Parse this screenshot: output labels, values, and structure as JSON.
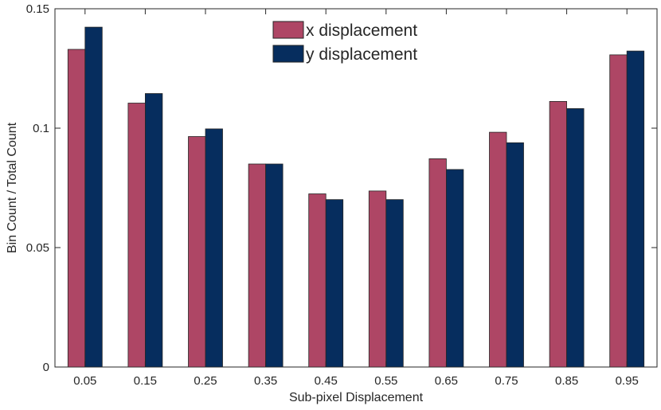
{
  "colors": {
    "x_series": "#ae4665",
    "y_series": "#062d5e",
    "axis": "#262626",
    "background": "#ffffff"
  },
  "chart_data": {
    "type": "bar",
    "title": "",
    "xlabel": "Sub-pixel Displacement",
    "ylabel": "Bin Count / Total Count",
    "categories": [
      "0.05",
      "0.15",
      "0.25",
      "0.35",
      "0.45",
      "0.55",
      "0.65",
      "0.75",
      "0.85",
      "0.95"
    ],
    "series": [
      {
        "name": "x displacement",
        "values": [
          0.133,
          0.1105,
          0.0965,
          0.085,
          0.0725,
          0.0737,
          0.0872,
          0.0983,
          0.1112,
          0.1307
        ]
      },
      {
        "name": "y displacement",
        "values": [
          0.1423,
          0.1145,
          0.0997,
          0.085,
          0.0701,
          0.0701,
          0.0827,
          0.0939,
          0.1082,
          0.1323
        ]
      }
    ],
    "ylim": [
      0,
      0.15
    ],
    "yticks": [
      "0",
      "0.05",
      "0.1",
      "0.15"
    ],
    "grid": false,
    "legend_position": "top-center"
  }
}
